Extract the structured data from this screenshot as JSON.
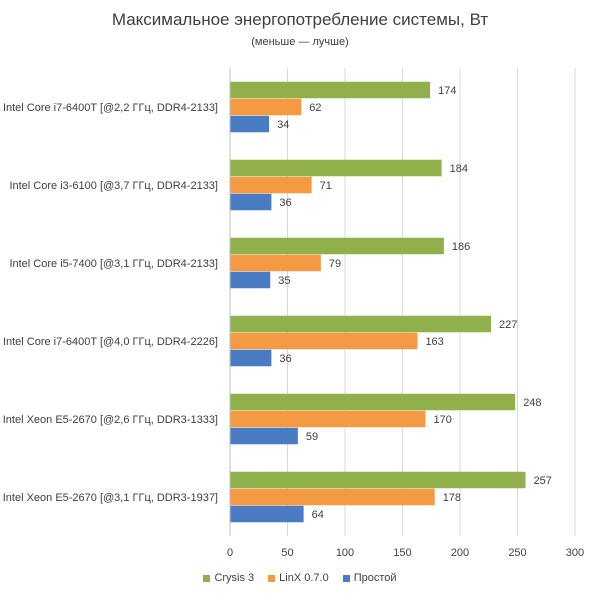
{
  "chart_data": {
    "type": "bar",
    "orientation": "horizontal",
    "title": "Максимальное энергопотребление системы, Вт",
    "subtitle": "(меньше — лучше)",
    "categories": [
      "Intel Core i7-6400T [@2,2 ГГц, DDR4-2133]",
      "Intel Core i3-6100 [@3,7 ГГц, DDR4-2133]",
      "Intel Core i5-7400 [@3,1 ГГц, DDR4-2133]",
      "Intel Core i7-6400T [@4,0 ГГц, DDR4-2226]",
      "Intel Xeon E5-2670 [@2,6 ГГц, DDR3-1333]",
      "Intel Xeon E5-2670 [@3,1 ГГц, DDR3-1937]"
    ],
    "series": [
      {
        "name": "Crysis 3",
        "color": "#8fb04a",
        "values": [
          174,
          184,
          186,
          227,
          248,
          257
        ]
      },
      {
        "name": "LinX 0.7.0",
        "color": "#f39a43",
        "values": [
          62,
          71,
          79,
          163,
          170,
          178
        ]
      },
      {
        "name": "Простой",
        "color": "#4a7cc4",
        "values": [
          34,
          36,
          35,
          36,
          59,
          64
        ]
      }
    ],
    "xlim": [
      0,
      300
    ],
    "xticks": [
      0,
      50,
      100,
      150,
      200,
      250,
      300
    ],
    "grid": true,
    "legend": "bottom-center"
  }
}
